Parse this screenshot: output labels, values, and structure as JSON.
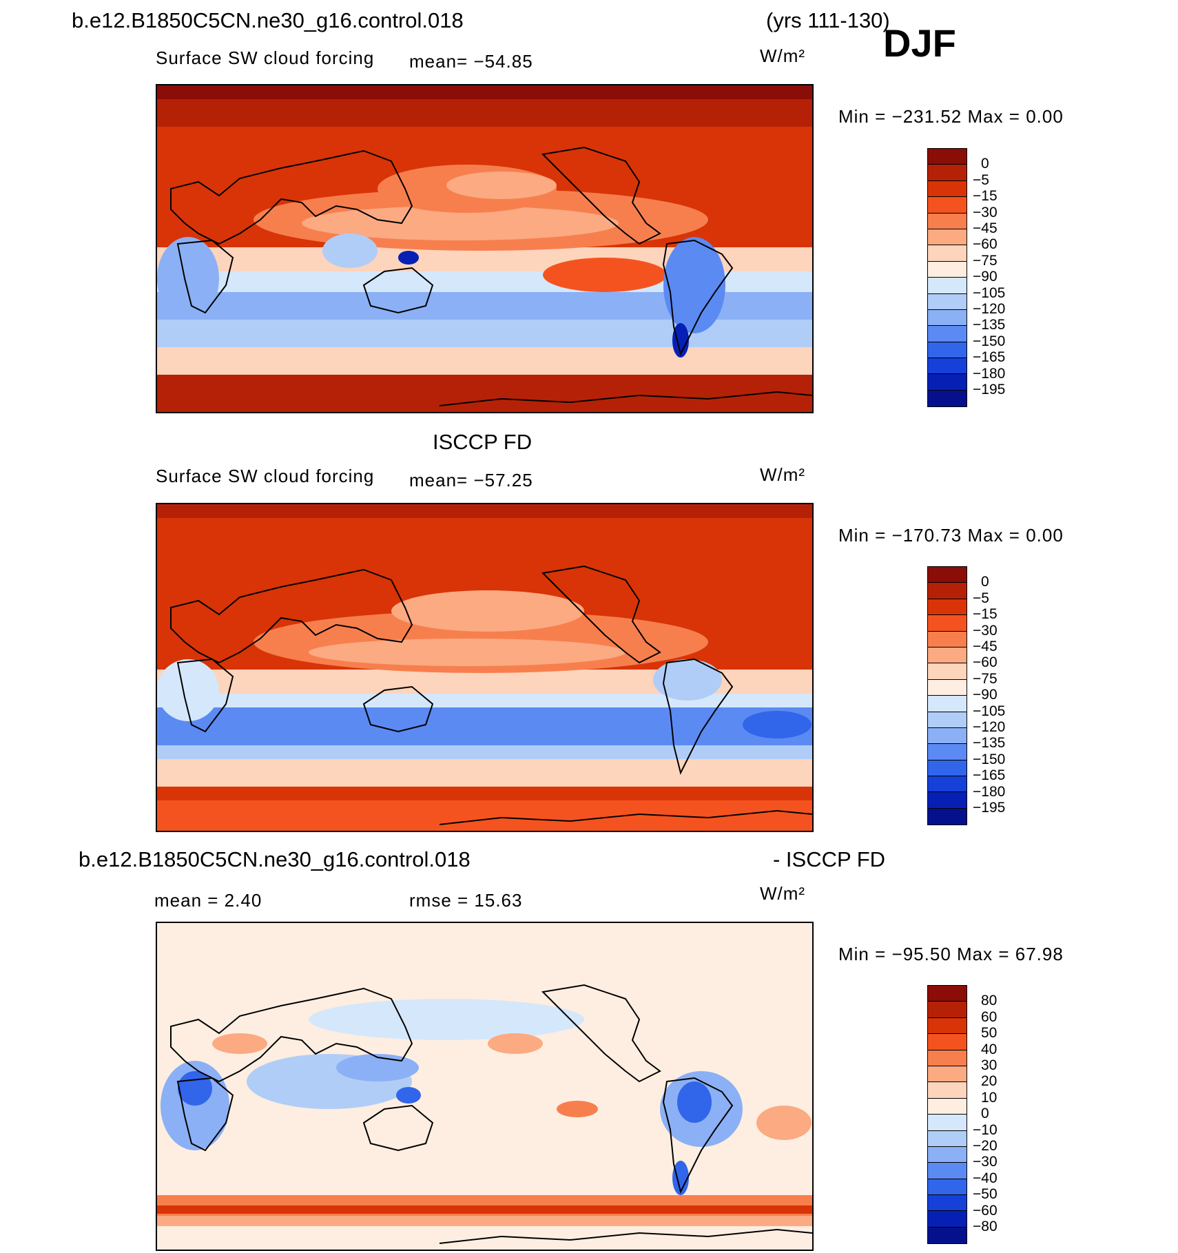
{
  "header": {
    "case_name": "b.e12.B1850C5CN.ne30_g16.control.018",
    "years": "(yrs 111-130)",
    "season": "DJF"
  },
  "panels": [
    {
      "title": "",
      "variable": "Surface SW cloud forcing",
      "stat1": "mean= −54.85",
      "stat2": "",
      "units": "W/m²",
      "min_max": "Min = −231.52 Max =    0.00",
      "colorbar": {
        "labels": [
          "0",
          "−5",
          "−15",
          "−30",
          "−45",
          "−60",
          "−75",
          "−90",
          "−105",
          "−120",
          "−135",
          "−150",
          "−165",
          "−180",
          "−195"
        ],
        "colors": [
          "#8b0d08",
          "#b52106",
          "#d83407",
          "#f4531f",
          "#f77f4e",
          "#fbaa82",
          "#fdd4bc",
          "#fdeee1",
          "#d5e7fa",
          "#b0cdf7",
          "#8bb0f5",
          "#5b8af2",
          "#3165ea",
          "#1541d8",
          "#0620b5",
          "#05118c"
        ]
      }
    },
    {
      "title": "ISCCP FD",
      "variable": "Surface SW cloud forcing",
      "stat1": "mean= −57.25",
      "stat2": "",
      "units": "W/m²",
      "min_max": "Min = −170.73 Max =    0.00",
      "colorbar": {
        "labels": [
          "0",
          "−5",
          "−15",
          "−30",
          "−45",
          "−60",
          "−75",
          "−90",
          "−105",
          "−120",
          "−135",
          "−150",
          "−165",
          "−180",
          "−195"
        ],
        "colors": [
          "#8b0d08",
          "#b52106",
          "#d83407",
          "#f4531f",
          "#f77f4e",
          "#fbaa82",
          "#fdd4bc",
          "#fdeee1",
          "#d5e7fa",
          "#b0cdf7",
          "#8bb0f5",
          "#5b8af2",
          "#3165ea",
          "#1541d8",
          "#0620b5",
          "#05118c"
        ]
      }
    },
    {
      "title": "b.e12.B1850C5CN.ne30_g16.control.018",
      "title_right": "- ISCCP FD",
      "variable": "",
      "stat1": "mean =     2.40",
      "stat2": "rmse =   15.63",
      "units": "W/m²",
      "min_max": "Min = −95.50 Max =   67.98",
      "colorbar": {
        "labels": [
          "80",
          "60",
          "50",
          "40",
          "30",
          "20",
          "10",
          "0",
          "−10",
          "−20",
          "−30",
          "−40",
          "−50",
          "−60",
          "−80"
        ],
        "colors": [
          "#8b0d08",
          "#b52106",
          "#d83407",
          "#f4531f",
          "#f77f4e",
          "#fbaa82",
          "#fdd4bc",
          "#fdeee1",
          "#d5e7fa",
          "#b0cdf7",
          "#8bb0f5",
          "#5b8af2",
          "#3165ea",
          "#1541d8",
          "#0620b5",
          "#05118c"
        ]
      }
    }
  ]
}
